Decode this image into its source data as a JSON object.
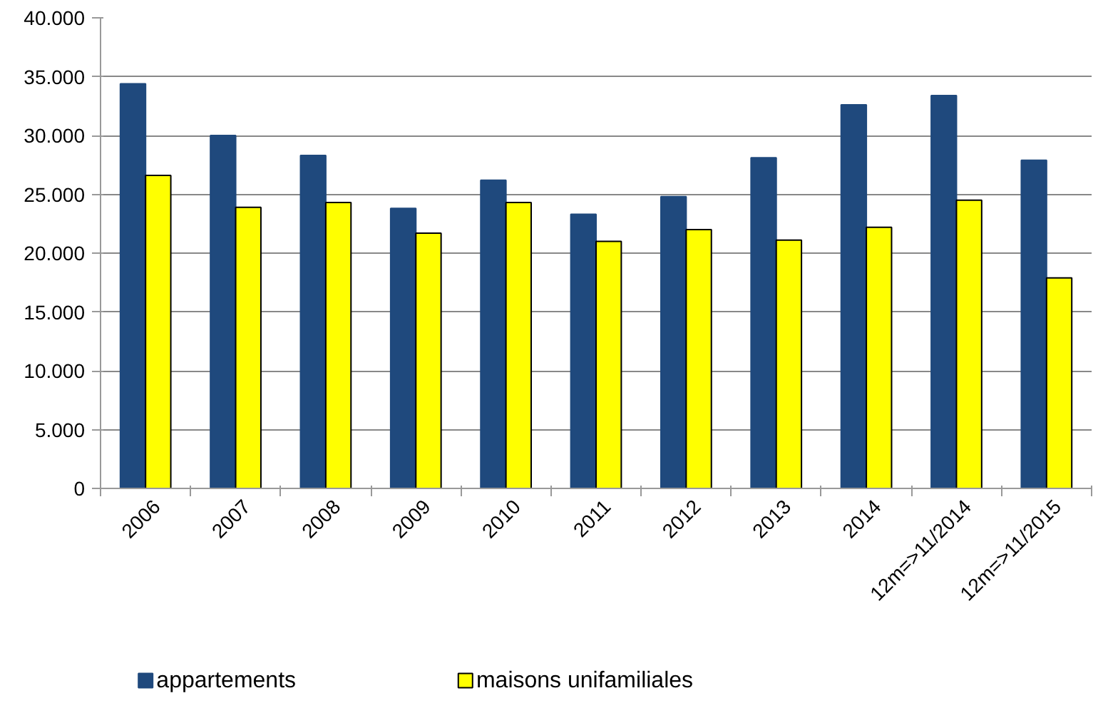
{
  "chart_data": {
    "type": "bar",
    "categories": [
      "2006",
      "2007",
      "2008",
      "2009",
      "2010",
      "2011",
      "2012",
      "2013",
      "2014",
      "12m=>11/2014",
      "12m=>11/2015"
    ],
    "series": [
      {
        "name": "appartements",
        "color": "#1f497d",
        "values": [
          34400,
          30000,
          28300,
          23800,
          26200,
          23300,
          24800,
          28100,
          32600,
          33400,
          27900
        ]
      },
      {
        "name": "maisons unifamiliales",
        "color": "#ffff00",
        "values": [
          26600,
          23900,
          24300,
          21700,
          24300,
          21000,
          22000,
          21100,
          22200,
          24500,
          17900
        ]
      }
    ],
    "ylim": [
      0,
      40000
    ],
    "yticks": [
      {
        "value": 0,
        "label": "0"
      },
      {
        "value": 5000,
        "label": "5.000"
      },
      {
        "value": 10000,
        "label": "10.000"
      },
      {
        "value": 15000,
        "label": "15.000"
      },
      {
        "value": 20000,
        "label": "20.000"
      },
      {
        "value": 25000,
        "label": "25.000"
      },
      {
        "value": 30000,
        "label": "30.000"
      },
      {
        "value": 35000,
        "label": "35.000"
      },
      {
        "value": 40000,
        "label": "40.000"
      }
    ],
    "grid": "y",
    "legend": "bottom"
  }
}
